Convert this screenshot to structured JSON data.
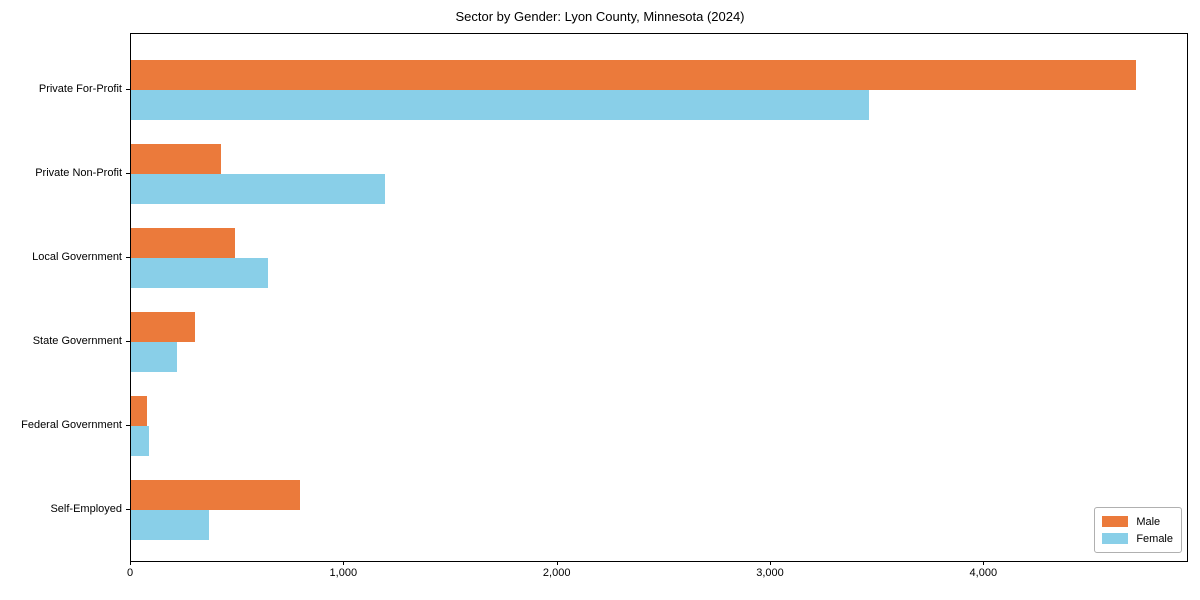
{
  "title": "Sector by Gender: Lyon County, Minnesota (2024)",
  "chart_data": {
    "type": "bar",
    "orientation": "horizontal",
    "title": "Sector by Gender: Lyon County, Minnesota (2024)",
    "categories": [
      "Private For-Profit",
      "Private Non-Profit",
      "Local Government",
      "State Government",
      "Federal Government",
      "Self-Employed"
    ],
    "series": [
      {
        "name": "Male",
        "color": "#EB7A3B",
        "values": [
          4710,
          420,
          485,
          300,
          75,
          790
        ]
      },
      {
        "name": "Female",
        "color": "#89CFE8",
        "values": [
          3460,
          1190,
          640,
          215,
          85,
          365
        ]
      }
    ],
    "xlabel": "",
    "ylabel": "",
    "xlim": [
      0,
      4950
    ],
    "xticks": [
      0,
      1000,
      2000,
      3000,
      4000
    ],
    "xtick_labels": [
      "0",
      "1,000",
      "2,000",
      "3,000",
      "4,000"
    ],
    "grid": false,
    "legend_position": "lower right"
  },
  "legend": {
    "items": [
      {
        "label": "Male",
        "color": "#EB7A3B"
      },
      {
        "label": "Female",
        "color": "#89CFE8"
      }
    ]
  }
}
